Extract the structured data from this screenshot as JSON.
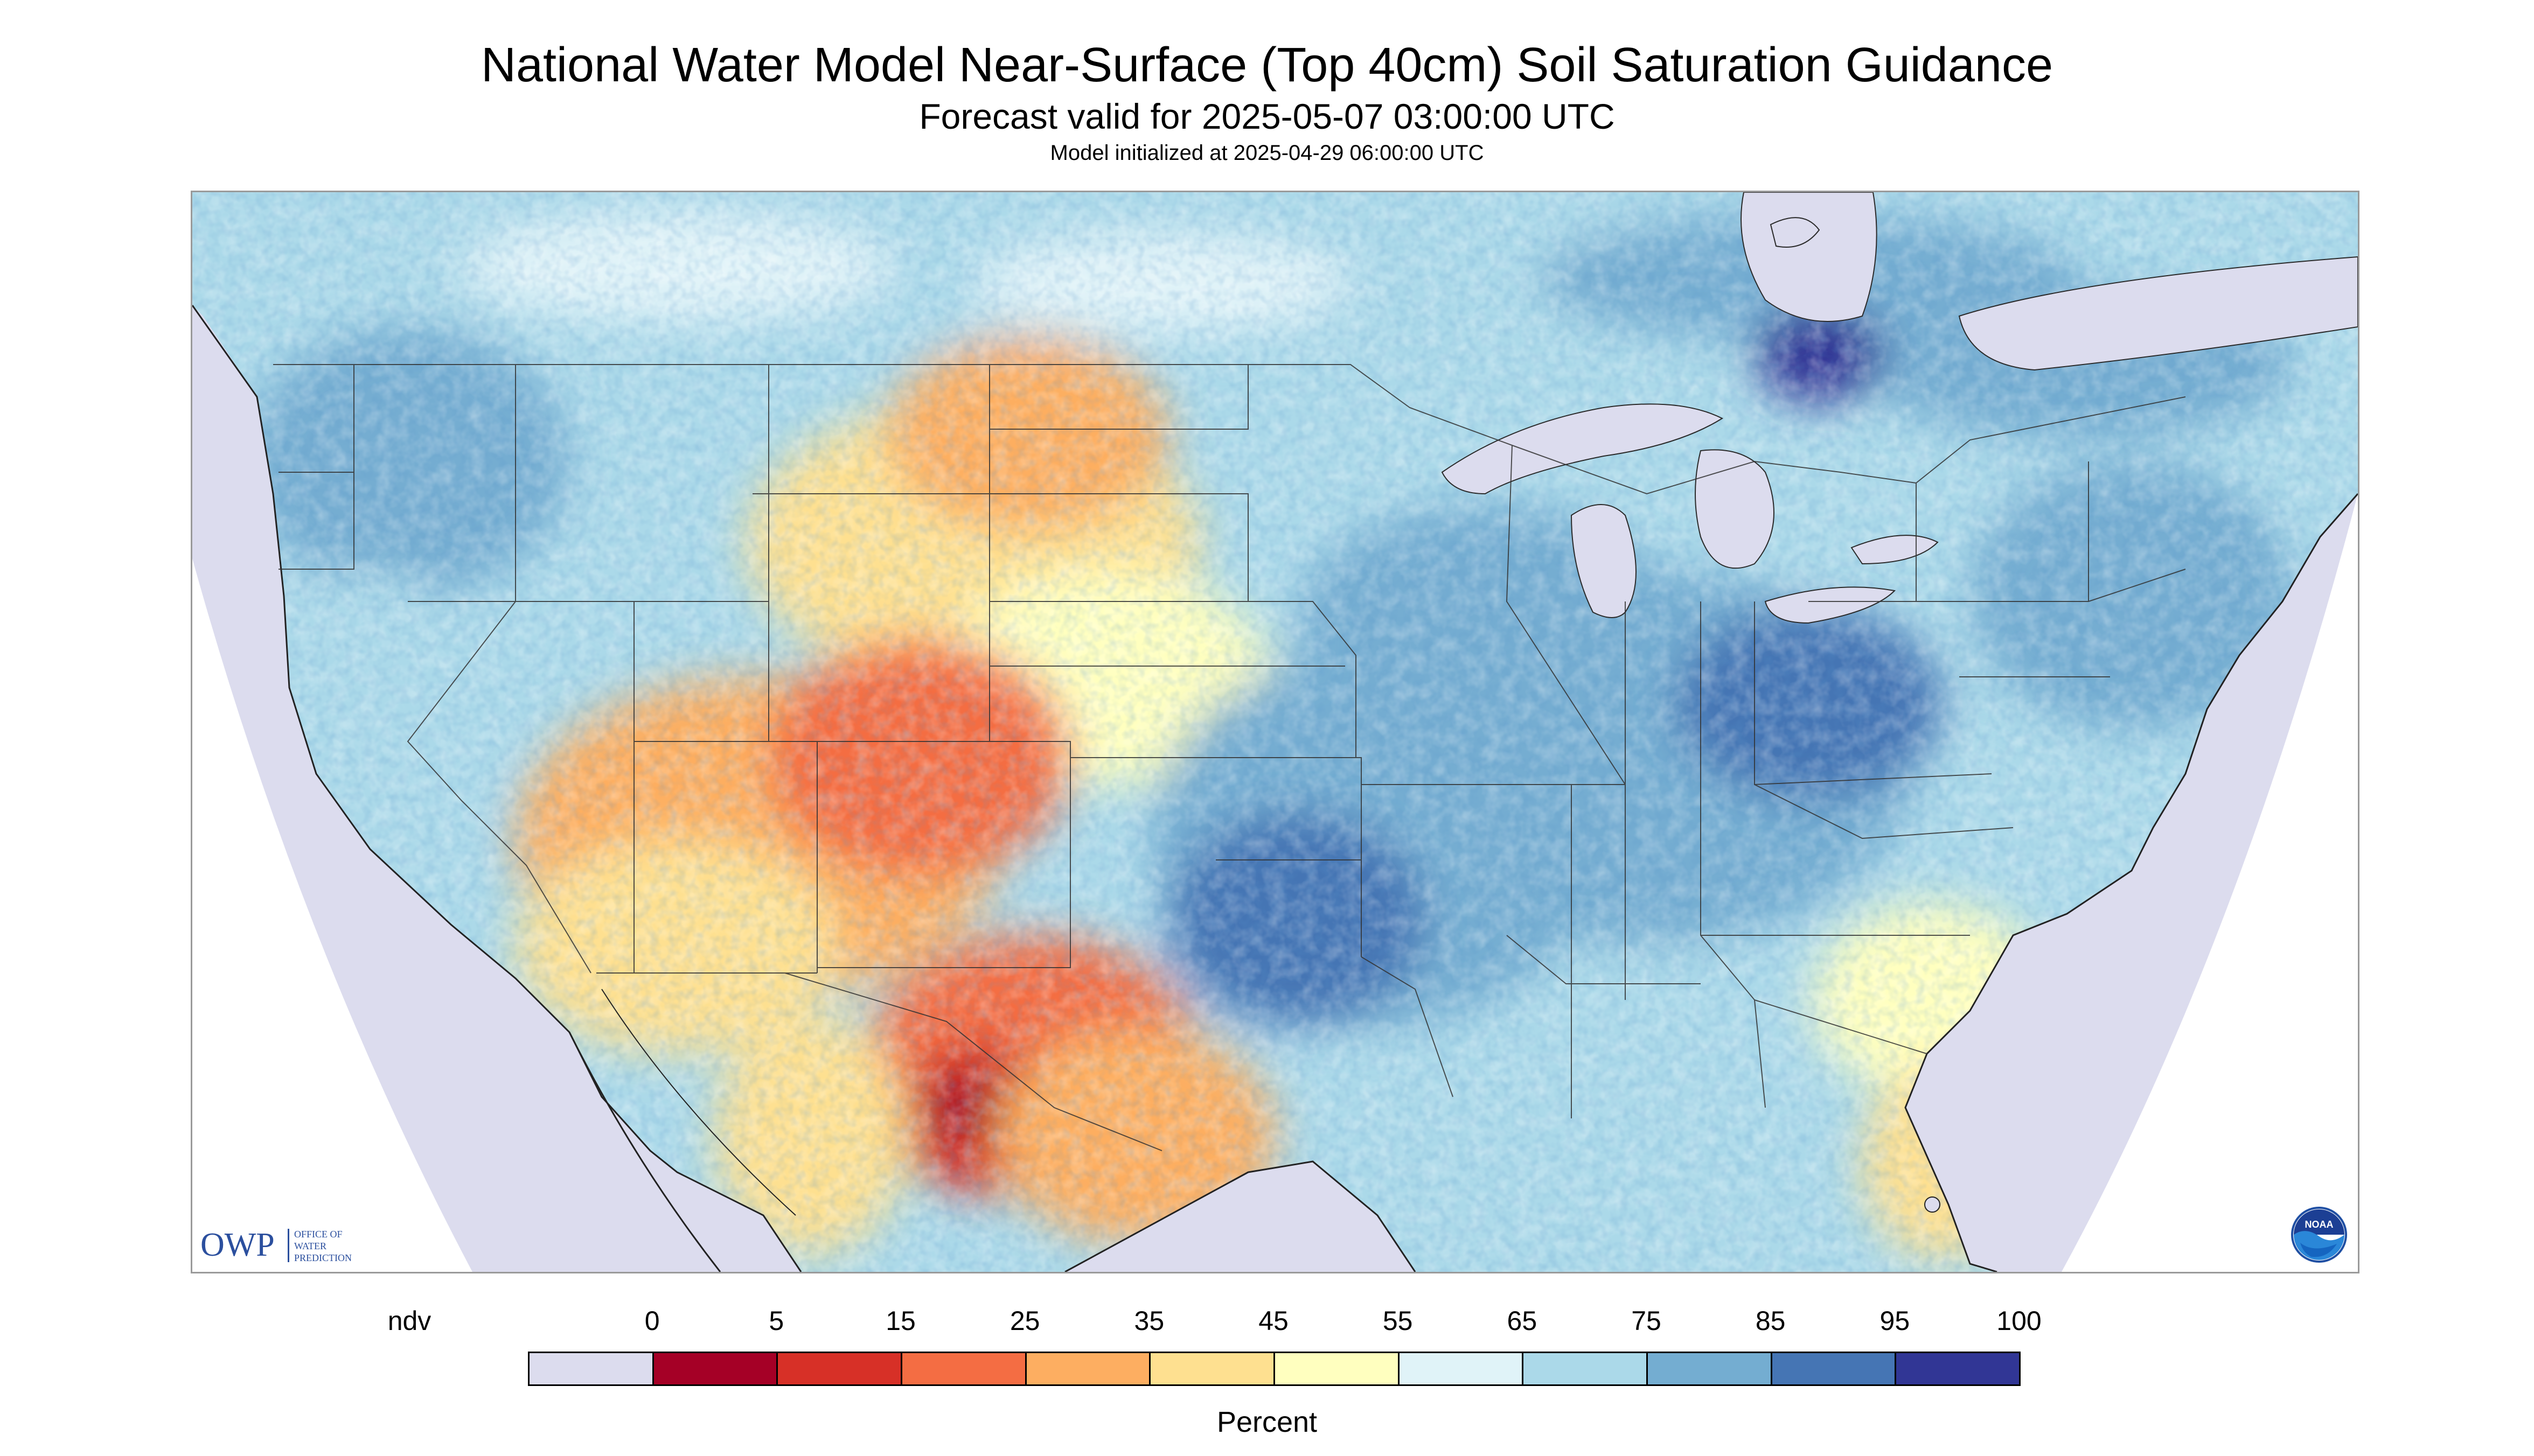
{
  "header": {
    "title": "National Water Model Near-Surface (Top 40cm) Soil Saturation Guidance",
    "subtitle": "Forecast valid for 2025-05-07 03:00:00 UTC",
    "model_init": "Model initialized at 2025-04-29 06:00:00 UTC"
  },
  "map": {
    "region": "Continental United States",
    "colors": {
      "ndv": "#dcdcee",
      "0": "#a50026",
      "5": "#d73027",
      "15": "#f46d43",
      "25": "#fdae61",
      "35": "#fee090",
      "45": "#ffffbf",
      "55": "#e0f3f8",
      "65": "#abd9e9",
      "75": "#74add1",
      "85": "#4575b4",
      "95": "#313695"
    }
  },
  "legend": {
    "unit_label": "Percent",
    "tick_labels": [
      "ndv",
      "0",
      "5",
      "15",
      "25",
      "35",
      "45",
      "55",
      "65",
      "75",
      "85",
      "95",
      "100"
    ],
    "bins": [
      {
        "label": "ndv",
        "color": "#dcdcee"
      },
      {
        "label": "0-5",
        "color": "#a50026"
      },
      {
        "label": "5-15",
        "color": "#d73027"
      },
      {
        "label": "15-25",
        "color": "#f46d43"
      },
      {
        "label": "25-35",
        "color": "#fdae61"
      },
      {
        "label": "35-45",
        "color": "#fee090"
      },
      {
        "label": "45-55",
        "color": "#ffffbf"
      },
      {
        "label": "55-65",
        "color": "#e0f3f8"
      },
      {
        "label": "65-75",
        "color": "#abd9e9"
      },
      {
        "label": "75-85",
        "color": "#74add1"
      },
      {
        "label": "85-95",
        "color": "#4575b4"
      },
      {
        "label": "95-100",
        "color": "#313695"
      }
    ]
  },
  "logos": {
    "owp_mark": "OWP",
    "owp_text": [
      "OFFICE OF",
      "WATER",
      "PREDICTION"
    ],
    "noaa_text": "NOAA"
  }
}
